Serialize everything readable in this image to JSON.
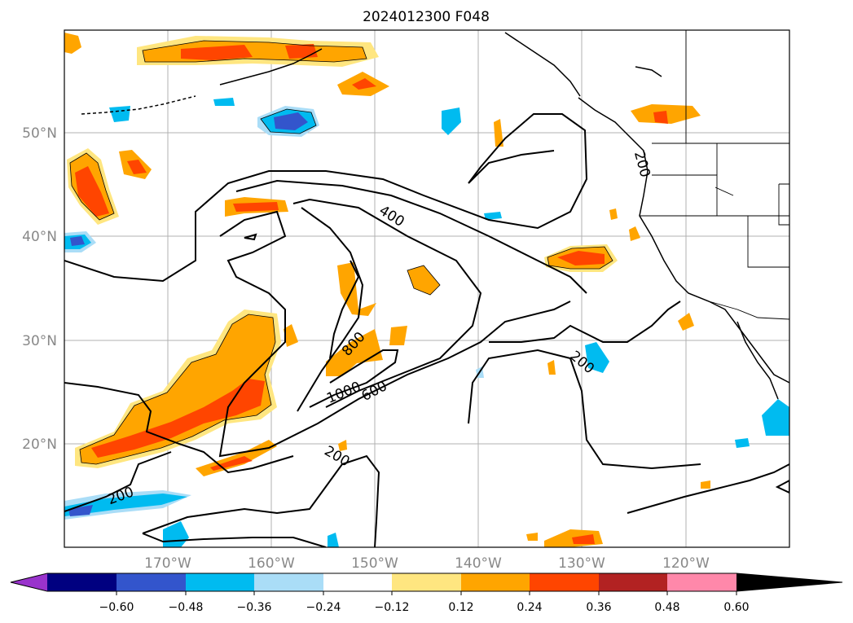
{
  "title": "2024012300 F048",
  "map": {
    "lat_labels": [
      "50°N",
      "40°N",
      "30°N",
      "20°N"
    ],
    "lon_labels": [
      "170°W",
      "160°W",
      "150°W",
      "140°W",
      "130°W",
      "120°W"
    ],
    "contour_labels": [
      "400",
      "800",
      "1000",
      "600",
      "200",
      "200",
      "200",
      "200"
    ],
    "grid": true
  },
  "colorbar": {
    "ticks": [
      "−0.60",
      "−0.48",
      "−0.36",
      "−0.24",
      "−0.12",
      "0.12",
      "0.24",
      "0.36",
      "0.48",
      "0.60"
    ],
    "colors": [
      "#9933cc",
      "#000080",
      "#3355cc",
      "#00bbf0",
      "#aaddf7",
      "#ffffff",
      "#ffe680",
      "#ffa500",
      "#ff4500",
      "#b22222",
      "#ff88aa"
    ]
  },
  "colors": {
    "pos_light": "#ffe680",
    "pos_mid": "#ffa500",
    "pos_strong": "#ff4500",
    "pos_max": "#b22222",
    "neg_light": "#aaddf7",
    "neg_mid": "#00bbf0",
    "neg_strong": "#3355cc",
    "neg_max": "#000080"
  }
}
